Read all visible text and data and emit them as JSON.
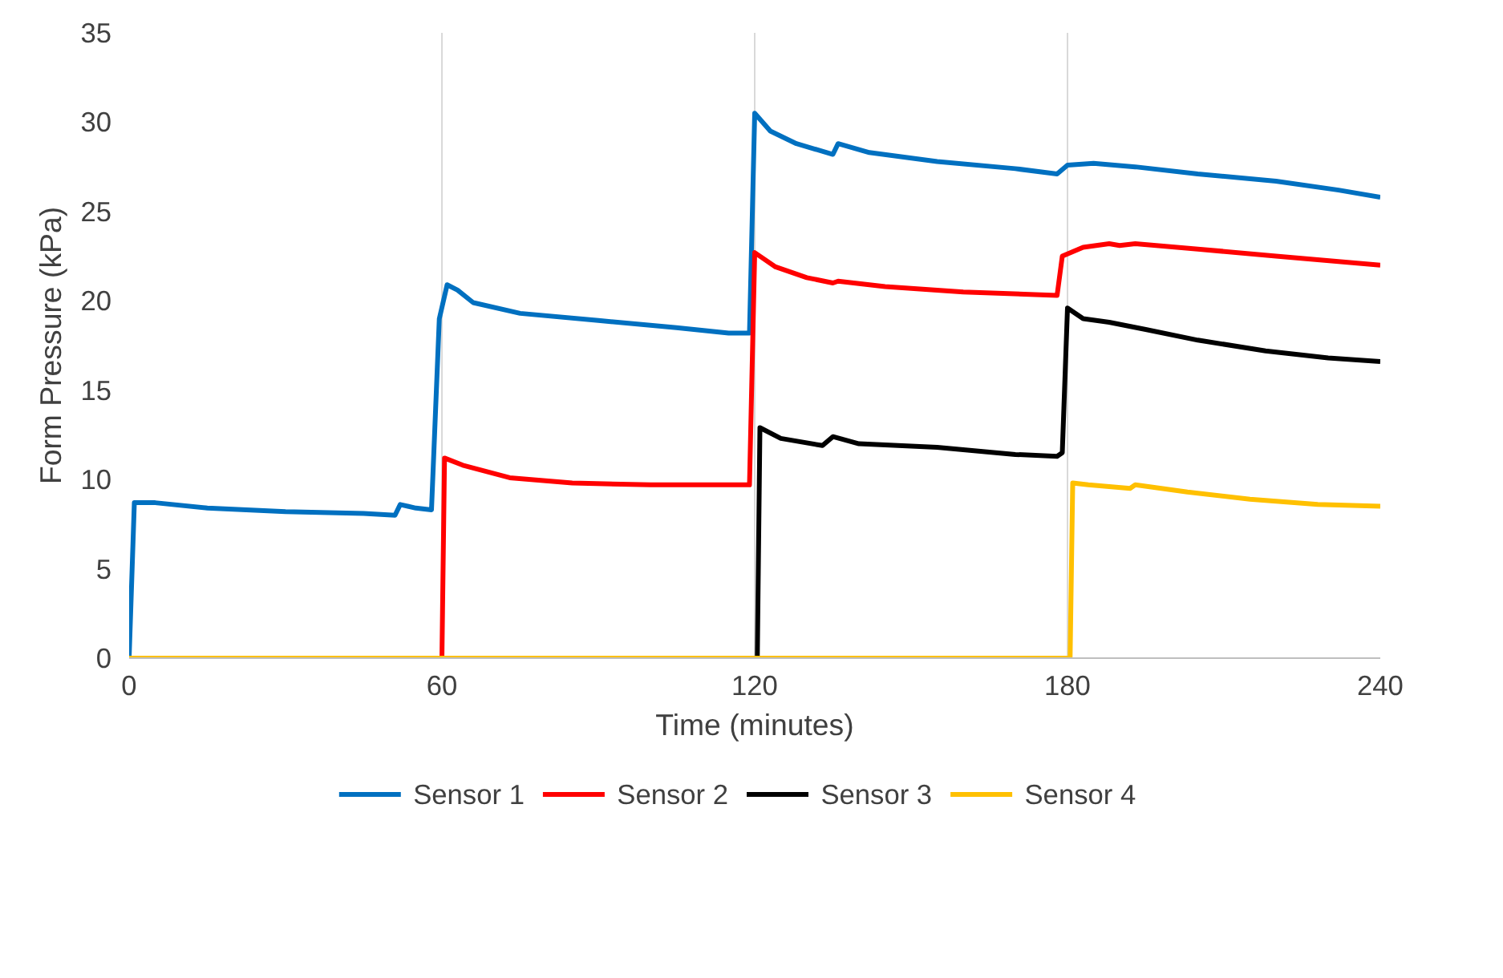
{
  "chart_data": {
    "type": "line",
    "xlabel": "Time (minutes)",
    "ylabel": "Form Pressure (kPa)",
    "xlim": [
      0,
      240
    ],
    "xticks": [
      0,
      60,
      120,
      180,
      240
    ],
    "ylim": [
      0,
      35
    ],
    "yticks": [
      0,
      5,
      10,
      15,
      20,
      25,
      30,
      35
    ],
    "grid": "x",
    "legend": "bottom",
    "line_style": "solid",
    "series": [
      {
        "name": "Sensor 1",
        "color": "#0070c0",
        "x": [
          0,
          1,
          5,
          15,
          30,
          45,
          51,
          52,
          55,
          58,
          59.5,
          61,
          63,
          66,
          75,
          90,
          105,
          115,
          119,
          120,
          123,
          128,
          135,
          136,
          142,
          155,
          170,
          178,
          180,
          185,
          193,
          205,
          220,
          232,
          240
        ],
        "values": [
          0,
          8.7,
          8.7,
          8.4,
          8.2,
          8.1,
          8.0,
          8.6,
          8.4,
          8.3,
          19,
          20.9,
          20.6,
          19.9,
          19.3,
          18.9,
          18.5,
          18.2,
          18.2,
          30.5,
          29.5,
          28.8,
          28.2,
          28.8,
          28.3,
          27.8,
          27.4,
          27.1,
          27.6,
          27.7,
          27.5,
          27.1,
          26.7,
          26.2,
          25.8
        ]
      },
      {
        "name": "Sensor 2",
        "color": "#ff0000",
        "x": [
          0,
          60,
          60.5,
          64,
          73,
          85,
          100,
          119,
          120,
          124,
          130,
          135,
          136,
          145,
          160,
          178,
          179,
          183,
          188,
          190,
          193,
          205,
          220,
          240
        ],
        "values": [
          0,
          0,
          11.2,
          10.8,
          10.1,
          9.8,
          9.7,
          9.7,
          22.7,
          21.9,
          21.3,
          21.0,
          21.1,
          20.8,
          20.5,
          20.3,
          22.5,
          23.0,
          23.2,
          23.1,
          23.2,
          22.9,
          22.5,
          22.0
        ]
      },
      {
        "name": "Sensor 3",
        "color": "#000000",
        "x": [
          0,
          120.5,
          121,
          125,
          133,
          135,
          140,
          155,
          170,
          178,
          179,
          180,
          183,
          188,
          195,
          205,
          218,
          230,
          240
        ],
        "values": [
          0,
          0,
          12.9,
          12.3,
          11.9,
          12.4,
          12.0,
          11.8,
          11.4,
          11.3,
          11.5,
          19.6,
          19.0,
          18.8,
          18.4,
          17.8,
          17.2,
          16.8,
          16.6
        ]
      },
      {
        "name": "Sensor 4",
        "color": "#ffc000",
        "x": [
          0,
          180.5,
          181,
          184,
          192,
          193,
          203,
          215,
          228,
          240
        ],
        "values": [
          0,
          0,
          9.8,
          9.7,
          9.5,
          9.7,
          9.3,
          8.9,
          8.6,
          8.5
        ]
      }
    ]
  }
}
